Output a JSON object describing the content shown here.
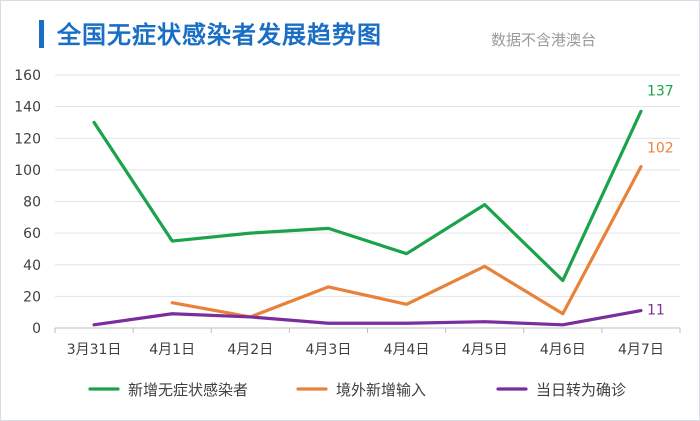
{
  "header": {
    "title": "全国无症状感染者发展趋势图",
    "note": "数据不含港澳台"
  },
  "chart_data": {
    "type": "line",
    "title": "全国无症状感染者发展趋势图",
    "categories": [
      "3月31日",
      "4月1日",
      "4月2日",
      "4月3日",
      "4月4日",
      "4月5日",
      "4月6日",
      "4月7日"
    ],
    "ylim": [
      0,
      160
    ],
    "yticks": [
      0,
      20,
      40,
      60,
      80,
      100,
      120,
      140,
      160
    ],
    "grid": true,
    "legend_position": "bottom",
    "series": [
      {
        "name": "新增无症状感染者",
        "color": "#1aa34a",
        "values": [
          130,
          55,
          60,
          63,
          47,
          78,
          30,
          137
        ]
      },
      {
        "name": "境外新增输入",
        "color": "#e8823a",
        "values": [
          null,
          16,
          7,
          26,
          15,
          39,
          9,
          102
        ]
      },
      {
        "name": "当日转为确诊",
        "color": "#7a2e9c",
        "values": [
          2,
          9,
          7,
          3,
          3,
          4,
          2,
          11
        ]
      }
    ],
    "data_labels": [
      {
        "series": 0,
        "index": 7,
        "text": "137"
      },
      {
        "series": 1,
        "index": 7,
        "text": "102"
      },
      {
        "series": 2,
        "index": 7,
        "text": "11"
      }
    ]
  }
}
